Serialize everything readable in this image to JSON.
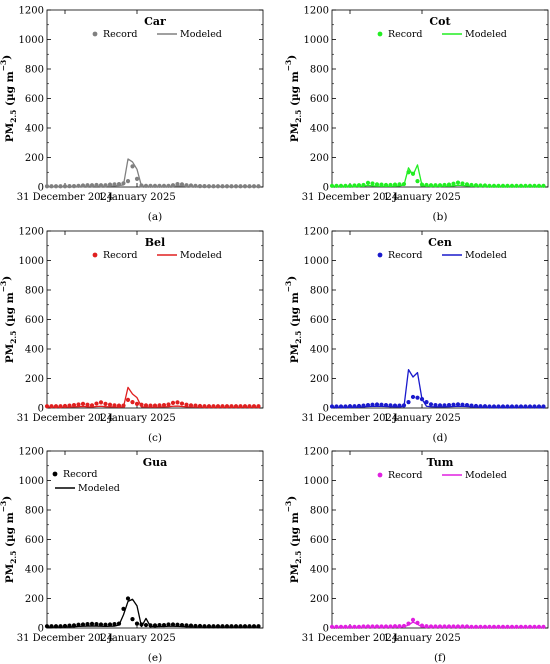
{
  "figure": {
    "ylabel_main": "PM",
    "ylabel_sub": "2.5",
    "ylabel_units": " (µg m",
    "ylabel_exp": "−3",
    "ylabel_close": ")"
  },
  "chart_data": [
    {
      "type": "line",
      "title": "Car",
      "caption": "(a)",
      "color": "#808080",
      "legend_layout": "row",
      "legend": {
        "record": "Record",
        "modeled": "Modeled"
      },
      "ylim": [
        0,
        1200
      ],
      "yticks": [
        0,
        200,
        400,
        600,
        800,
        1000,
        1200
      ],
      "xlim": [
        0,
        48
      ],
      "xticks": [
        {
          "x": 4,
          "label": "31 December 2024"
        },
        {
          "x": 20,
          "label": "1 January 2025"
        }
      ],
      "record_x": [
        0,
        1,
        2,
        3,
        4,
        5,
        6,
        7,
        8,
        9,
        10,
        11,
        12,
        13,
        14,
        15,
        16,
        17,
        18,
        19,
        20,
        21,
        22,
        23,
        24,
        25,
        26,
        27,
        28,
        29,
        30,
        31,
        32,
        33,
        34,
        35,
        36,
        37,
        38,
        39,
        40,
        41,
        42,
        43,
        44,
        45,
        46,
        47
      ],
      "record_y": [
        5,
        5,
        5,
        5,
        5,
        6,
        6,
        8,
        10,
        12,
        12,
        14,
        12,
        12,
        16,
        18,
        20,
        25,
        40,
        140,
        55,
        10,
        8,
        8,
        8,
        8,
        8,
        8,
        12,
        20,
        18,
        12,
        10,
        8,
        6,
        6,
        5,
        5,
        5,
        5,
        5,
        5,
        5,
        5,
        5,
        5,
        5,
        5
      ],
      "modeled_x": [
        0,
        1,
        2,
        3,
        4,
        5,
        6,
        7,
        8,
        9,
        10,
        11,
        12,
        13,
        14,
        15,
        16,
        17,
        18,
        19,
        20,
        21,
        22,
        23,
        24,
        25,
        26,
        27,
        28,
        29,
        30,
        31,
        32,
        33,
        34,
        35,
        36,
        37,
        38,
        39,
        40,
        41,
        42,
        43,
        44,
        45,
        46,
        47
      ],
      "modeled_y": [
        2,
        2,
        2,
        2,
        2,
        2,
        2,
        3,
        4,
        5,
        5,
        6,
        5,
        5,
        6,
        8,
        10,
        14,
        190,
        170,
        120,
        6,
        4,
        4,
        4,
        4,
        4,
        4,
        5,
        8,
        7,
        5,
        4,
        4,
        3,
        3,
        2,
        2,
        2,
        2,
        2,
        2,
        2,
        2,
        2,
        2,
        2,
        2
      ]
    },
    {
      "type": "line",
      "title": "Cot",
      "caption": "(b)",
      "color": "#22ee22",
      "legend_layout": "row",
      "legend": {
        "record": "Record",
        "modeled": "Modeled"
      },
      "ylim": [
        0,
        1200
      ],
      "yticks": [
        0,
        200,
        400,
        600,
        800,
        1000,
        1200
      ],
      "xlim": [
        0,
        48
      ],
      "xticks": [
        {
          "x": 4,
          "label": "31 December 2024"
        },
        {
          "x": 20,
          "label": "1 January 2025"
        }
      ],
      "record_x": [
        0,
        1,
        2,
        3,
        4,
        5,
        6,
        7,
        8,
        9,
        10,
        11,
        12,
        13,
        14,
        15,
        16,
        17,
        18,
        19,
        20,
        21,
        22,
        23,
        24,
        25,
        26,
        27,
        28,
        29,
        30,
        31,
        32,
        33,
        34,
        35,
        36,
        37,
        38,
        39,
        40,
        41,
        42,
        43,
        44,
        45,
        46,
        47
      ],
      "record_y": [
        8,
        8,
        8,
        8,
        8,
        10,
        12,
        14,
        28,
        24,
        18,
        16,
        14,
        14,
        16,
        18,
        20,
        100,
        90,
        40,
        16,
        14,
        12,
        12,
        12,
        14,
        16,
        22,
        30,
        24,
        18,
        14,
        12,
        10,
        10,
        8,
        8,
        8,
        8,
        8,
        8,
        8,
        8,
        8,
        8,
        8,
        8,
        8
      ],
      "modeled_x": [
        0,
        1,
        2,
        3,
        4,
        5,
        6,
        7,
        8,
        9,
        10,
        11,
        12,
        13,
        14,
        15,
        16,
        17,
        18,
        19,
        20,
        21,
        22,
        23,
        24,
        25,
        26,
        27,
        28,
        29,
        30,
        31,
        32,
        33,
        34,
        35,
        36,
        37,
        38,
        39,
        40,
        41,
        42,
        43,
        44,
        45,
        46,
        47
      ],
      "modeled_y": [
        4,
        4,
        4,
        4,
        4,
        4,
        5,
        6,
        10,
        8,
        6,
        5,
        5,
        5,
        6,
        8,
        14,
        130,
        80,
        150,
        10,
        6,
        5,
        5,
        5,
        6,
        6,
        8,
        12,
        10,
        8,
        6,
        5,
        5,
        4,
        4,
        4,
        4,
        4,
        4,
        4,
        4,
        4,
        4,
        4,
        4,
        4,
        4
      ]
    },
    {
      "type": "line",
      "title": "Bel",
      "caption": "(c)",
      "color": "#e02020",
      "legend_layout": "row",
      "legend": {
        "record": "Record",
        "modeled": "Modeled"
      },
      "ylim": [
        0,
        1200
      ],
      "yticks": [
        0,
        200,
        400,
        600,
        800,
        1000,
        1200
      ],
      "xlim": [
        0,
        48
      ],
      "xticks": [
        {
          "x": 4,
          "label": "31 December 2024"
        },
        {
          "x": 20,
          "label": "1 January 2025"
        }
      ],
      "record_x": [
        0,
        1,
        2,
        3,
        4,
        5,
        6,
        7,
        8,
        9,
        10,
        11,
        12,
        13,
        14,
        15,
        16,
        17,
        18,
        19,
        20,
        21,
        22,
        23,
        24,
        25,
        26,
        27,
        28,
        29,
        30,
        31,
        32,
        33,
        34,
        35,
        36,
        37,
        38,
        39,
        40,
        41,
        42,
        43,
        44,
        45,
        46,
        47
      ],
      "record_y": [
        12,
        12,
        12,
        12,
        14,
        16,
        20,
        24,
        28,
        22,
        18,
        30,
        38,
        28,
        22,
        18,
        16,
        16,
        55,
        40,
        28,
        22,
        18,
        16,
        16,
        18,
        20,
        24,
        35,
        38,
        30,
        22,
        18,
        16,
        14,
        12,
        12,
        12,
        12,
        12,
        12,
        12,
        12,
        12,
        12,
        12,
        12,
        12
      ],
      "modeled_x": [
        0,
        1,
        2,
        3,
        4,
        5,
        6,
        7,
        8,
        9,
        10,
        11,
        12,
        13,
        14,
        15,
        16,
        17,
        18,
        19,
        20,
        21,
        22,
        23,
        24,
        25,
        26,
        27,
        28,
        29,
        30,
        31,
        32,
        33,
        34,
        35,
        36,
        37,
        38,
        39,
        40,
        41,
        42,
        43,
        44,
        45,
        46,
        47
      ],
      "modeled_y": [
        6,
        6,
        6,
        6,
        6,
        7,
        8,
        9,
        10,
        8,
        7,
        10,
        12,
        9,
        8,
        7,
        6,
        8,
        140,
        95,
        70,
        8,
        7,
        6,
        6,
        7,
        8,
        9,
        12,
        13,
        10,
        8,
        7,
        6,
        6,
        5,
        5,
        5,
        5,
        5,
        5,
        5,
        5,
        5,
        5,
        5,
        5,
        5
      ]
    },
    {
      "type": "line",
      "title": "Cen",
      "caption": "(d)",
      "color": "#1a1acc",
      "legend_layout": "row",
      "legend": {
        "record": "Record",
        "modeled": "Modeled"
      },
      "ylim": [
        0,
        1200
      ],
      "yticks": [
        0,
        200,
        400,
        600,
        800,
        1000,
        1200
      ],
      "xlim": [
        0,
        48
      ],
      "xticks": [
        {
          "x": 4,
          "label": "31 December 2024"
        },
        {
          "x": 20,
          "label": "1 January 2025"
        }
      ],
      "record_x": [
        0,
        1,
        2,
        3,
        4,
        5,
        6,
        7,
        8,
        9,
        10,
        11,
        12,
        13,
        14,
        15,
        16,
        17,
        18,
        19,
        20,
        21,
        22,
        23,
        24,
        25,
        26,
        27,
        28,
        29,
        30,
        31,
        32,
        33,
        34,
        35,
        36,
        37,
        38,
        39,
        40,
        41,
        42,
        43,
        44,
        45,
        46,
        47
      ],
      "record_y": [
        10,
        10,
        10,
        10,
        12,
        12,
        14,
        16,
        20,
        22,
        24,
        22,
        20,
        18,
        16,
        16,
        18,
        40,
        75,
        70,
        60,
        40,
        25,
        20,
        18,
        18,
        20,
        22,
        25,
        22,
        20,
        16,
        14,
        12,
        12,
        10,
        10,
        10,
        10,
        10,
        10,
        10,
        10,
        10,
        10,
        10,
        10,
        10
      ],
      "modeled_x": [
        0,
        1,
        2,
        3,
        4,
        5,
        6,
        7,
        8,
        9,
        10,
        11,
        12,
        13,
        14,
        15,
        16,
        17,
        18,
        19,
        20,
        21,
        22,
        23,
        24,
        25,
        26,
        27,
        28,
        29,
        30,
        31,
        32,
        33,
        34,
        35,
        36,
        37,
        38,
        39,
        40,
        41,
        42,
        43,
        44,
        45,
        46,
        47
      ],
      "modeled_y": [
        5,
        5,
        5,
        5,
        6,
        6,
        7,
        8,
        10,
        11,
        12,
        11,
        10,
        9,
        8,
        8,
        10,
        260,
        210,
        240,
        60,
        12,
        9,
        8,
        8,
        8,
        9,
        10,
        12,
        11,
        10,
        8,
        7,
        6,
        6,
        5,
        5,
        5,
        5,
        5,
        5,
        5,
        5,
        5,
        5,
        5,
        5,
        5
      ]
    },
    {
      "type": "line",
      "title": "Gua",
      "caption": "(e)",
      "color": "#000000",
      "legend_layout": "column",
      "legend": {
        "record": "Record",
        "modeled": "Modeled"
      },
      "ylim": [
        0,
        1200
      ],
      "yticks": [
        0,
        200,
        400,
        600,
        800,
        1000,
        1200
      ],
      "xlim": [
        0,
        48
      ],
      "xticks": [
        {
          "x": 4,
          "label": "31 December 2024"
        },
        {
          "x": 20,
          "label": "1 January 2025"
        }
      ],
      "record_x": [
        0,
        1,
        2,
        3,
        4,
        5,
        6,
        7,
        8,
        9,
        10,
        11,
        12,
        13,
        14,
        15,
        16,
        17,
        18,
        19,
        20,
        21,
        22,
        23,
        24,
        25,
        26,
        27,
        28,
        29,
        30,
        31,
        32,
        33,
        34,
        35,
        36,
        37,
        38,
        39,
        40,
        41,
        42,
        43,
        44,
        45,
        46,
        47
      ],
      "record_y": [
        12,
        12,
        12,
        12,
        14,
        16,
        18,
        22,
        24,
        26,
        28,
        26,
        24,
        22,
        24,
        26,
        30,
        130,
        200,
        60,
        30,
        24,
        20,
        18,
        18,
        20,
        20,
        24,
        24,
        22,
        20,
        18,
        16,
        14,
        14,
        12,
        12,
        12,
        12,
        12,
        12,
        12,
        12,
        12,
        12,
        12,
        12,
        12
      ],
      "modeled_x": [
        0,
        1,
        2,
        3,
        4,
        5,
        6,
        7,
        8,
        9,
        10,
        11,
        12,
        13,
        14,
        15,
        16,
        17,
        18,
        19,
        20,
        21,
        22,
        23,
        24,
        25,
        26,
        27,
        28,
        29,
        30,
        31,
        32,
        33,
        34,
        35,
        36,
        37,
        38,
        39,
        40,
        41,
        42,
        43,
        44,
        45,
        46,
        47
      ],
      "modeled_y": [
        6,
        6,
        6,
        6,
        7,
        8,
        9,
        11,
        12,
        13,
        14,
        13,
        12,
        11,
        12,
        13,
        20,
        90,
        180,
        195,
        150,
        10,
        65,
        10,
        9,
        10,
        10,
        12,
        12,
        11,
        10,
        9,
        8,
        7,
        7,
        6,
        6,
        6,
        6,
        6,
        6,
        6,
        6,
        6,
        6,
        6,
        6,
        6
      ]
    },
    {
      "type": "line",
      "title": "Tum",
      "caption": "(f)",
      "color": "#e020e0",
      "legend_layout": "row",
      "legend": {
        "record": "Record",
        "modeled": "Modeled"
      },
      "ylim": [
        0,
        1200
      ],
      "yticks": [
        0,
        200,
        400,
        600,
        800,
        1000,
        1200
      ],
      "xlim": [
        0,
        48
      ],
      "xticks": [
        {
          "x": 4,
          "label": "31 December 2024"
        },
        {
          "x": 20,
          "label": "1 January 2025"
        }
      ],
      "record_x": [
        0,
        1,
        2,
        3,
        4,
        5,
        6,
        7,
        8,
        9,
        10,
        11,
        12,
        13,
        14,
        15,
        16,
        17,
        18,
        19,
        20,
        21,
        22,
        23,
        24,
        25,
        26,
        27,
        28,
        29,
        30,
        31,
        32,
        33,
        34,
        35,
        36,
        37,
        38,
        39,
        40,
        41,
        42,
        43,
        44,
        45,
        46,
        47
      ],
      "record_y": [
        8,
        8,
        8,
        8,
        8,
        8,
        8,
        10,
        10,
        10,
        10,
        10,
        10,
        10,
        12,
        12,
        14,
        30,
        55,
        35,
        16,
        12,
        10,
        10,
        10,
        10,
        10,
        10,
        10,
        10,
        10,
        8,
        8,
        8,
        8,
        8,
        8,
        8,
        8,
        8,
        8,
        8,
        8,
        8,
        8,
        8,
        8,
        8
      ],
      "modeled_x": [
        0,
        1,
        2,
        3,
        4,
        5,
        6,
        7,
        8,
        9,
        10,
        11,
        12,
        13,
        14,
        15,
        16,
        17,
        18,
        19,
        20,
        21,
        22,
        23,
        24,
        25,
        26,
        27,
        28,
        29,
        30,
        31,
        32,
        33,
        34,
        35,
        36,
        37,
        38,
        39,
        40,
        41,
        42,
        43,
        44,
        45,
        46,
        47
      ],
      "modeled_y": [
        4,
        4,
        4,
        4,
        4,
        4,
        4,
        5,
        5,
        5,
        5,
        5,
        5,
        5,
        6,
        6,
        8,
        20,
        40,
        25,
        8,
        6,
        5,
        5,
        5,
        5,
        5,
        5,
        5,
        5,
        5,
        4,
        4,
        4,
        4,
        4,
        4,
        4,
        4,
        4,
        4,
        4,
        4,
        4,
        4,
        4,
        4,
        4
      ]
    }
  ]
}
